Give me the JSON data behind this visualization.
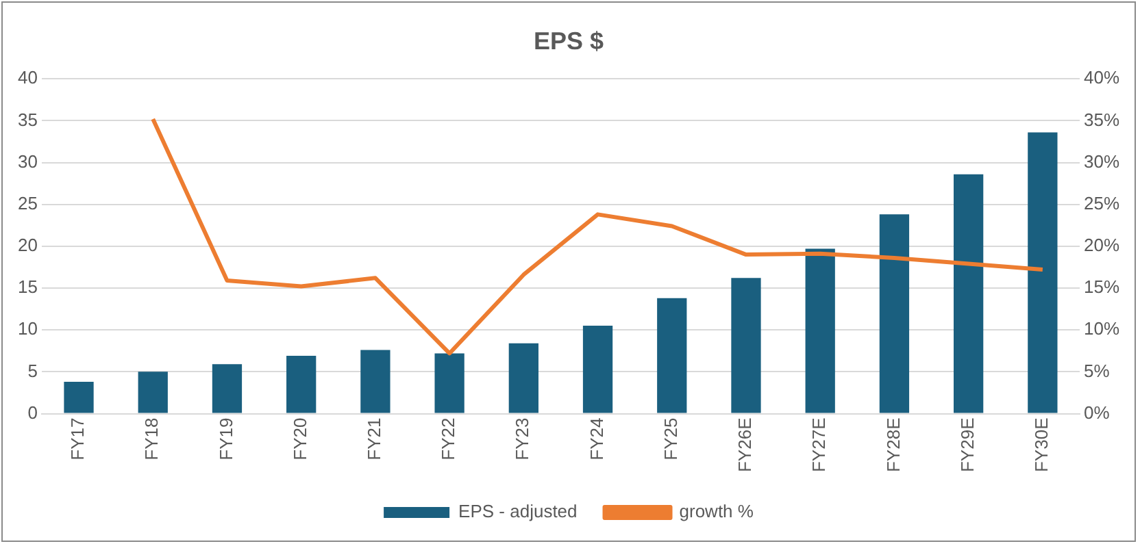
{
  "chart_data": {
    "type": "bar",
    "title": "EPS $",
    "categories": [
      "FY17",
      "FY18",
      "FY19",
      "FY20",
      "FY21",
      "FY22",
      "FY23",
      "FY24",
      "FY25",
      "FY26E",
      "FY27E",
      "FY28E",
      "FY29E",
      "FY30E"
    ],
    "series": [
      {
        "name": "EPS - adjusted",
        "color": "#1a5f7f",
        "values": [
          3.8,
          5.0,
          5.9,
          6.9,
          7.6,
          7.2,
          8.4,
          10.5,
          13.8,
          16.2,
          19.7,
          23.8,
          28.6,
          33.6
        ]
      },
      {
        "name": "growth %",
        "type": "line",
        "axis": "y2",
        "color": "#ed7d31",
        "values": [
          null,
          35.2,
          15.9,
          15.2,
          16.2,
          7.2,
          16.6,
          23.8,
          22.4,
          19.0,
          19.1,
          18.6,
          17.9,
          17.2
        ]
      }
    ],
    "ylim": [
      0,
      40
    ],
    "yticks": [
      0,
      5,
      10,
      15,
      20,
      25,
      30,
      35,
      40
    ],
    "y2lim": [
      0,
      40
    ],
    "y2ticks": [
      {
        "value": 0,
        "label": "0%"
      },
      {
        "value": 5,
        "label": "5%"
      },
      {
        "value": 10,
        "label": "10%"
      },
      {
        "value": 15,
        "label": "15%"
      },
      {
        "value": 20,
        "label": "20%"
      },
      {
        "value": 25,
        "label": "25%"
      },
      {
        "value": 30,
        "label": "30%"
      },
      {
        "value": 35,
        "label": "35%"
      },
      {
        "value": 40,
        "label": "40%"
      }
    ],
    "grid": "y",
    "legend": "bottom",
    "marker": "none"
  }
}
